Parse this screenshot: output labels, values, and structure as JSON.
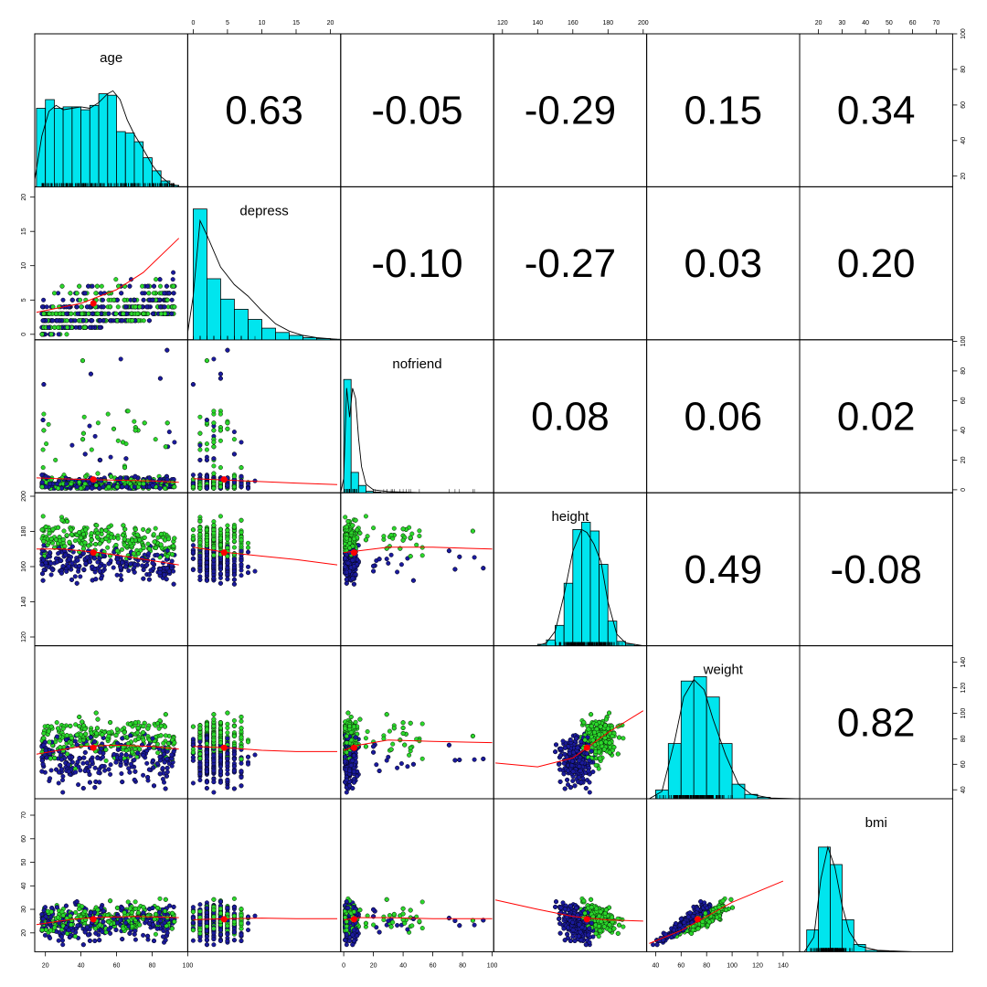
{
  "chart_data": {
    "type": "scatter-matrix",
    "variables": [
      "age",
      "depress",
      "nofriend",
      "height",
      "weight",
      "bmi"
    ],
    "colors": {
      "point_group_a": "#1a1a9c",
      "point_group_b": "#2bd82b",
      "histogram_fill": "#00e5ee",
      "smooth_line": "#ff0000",
      "mean_point": "#ff0000",
      "density_line": "#000000",
      "frame": "#000000"
    },
    "axes": {
      "age": {
        "range": [
          14,
          100
        ],
        "ticks": [
          "20",
          "40",
          "60",
          "80",
          "100"
        ],
        "tick_values": [
          20,
          40,
          60,
          80,
          100
        ]
      },
      "depress": {
        "range": [
          -0.8,
          21.5
        ],
        "ticks": [
          "0",
          "5",
          "10",
          "15",
          "20"
        ],
        "tick_values": [
          0,
          5,
          10,
          15,
          20
        ]
      },
      "nofriend": {
        "range": [
          -2,
          101
        ],
        "ticks": [
          "0",
          "20",
          "40",
          "60",
          "80",
          "100"
        ],
        "tick_values": [
          0,
          20,
          40,
          60,
          80,
          100
        ]
      },
      "height": {
        "range": [
          115,
          202
        ],
        "ticks": [
          "120",
          "140",
          "160",
          "180",
          "200"
        ],
        "tick_values": [
          120,
          140,
          160,
          180,
          200
        ]
      },
      "weight": {
        "range": [
          33,
          153
        ],
        "ticks": [
          "40",
          "60",
          "80",
          "100",
          "120",
          "140"
        ],
        "tick_values": [
          40,
          60,
          80,
          100,
          120,
          140
        ]
      },
      "bmi": {
        "range": [
          12,
          77
        ],
        "ticks": [
          "20",
          "30",
          "40",
          "50",
          "60",
          "70"
        ],
        "tick_values": [
          20,
          30,
          40,
          50,
          60,
          70
        ]
      }
    },
    "axis_label_positions": {
      "top": [
        "depress",
        "height",
        "bmi"
      ],
      "bottom": [
        "age",
        "nofriend",
        "weight"
      ],
      "left": [
        "depress",
        "height",
        "bmi"
      ],
      "right": [
        "age",
        "nofriend",
        "weight"
      ]
    },
    "correlations": [
      {
        "row": "age",
        "col": "depress",
        "label": "0.63"
      },
      {
        "row": "age",
        "col": "nofriend",
        "label": "-0.05"
      },
      {
        "row": "age",
        "col": "height",
        "label": "-0.29"
      },
      {
        "row": "age",
        "col": "weight",
        "label": "0.15"
      },
      {
        "row": "age",
        "col": "bmi",
        "label": "0.34"
      },
      {
        "row": "depress",
        "col": "nofriend",
        "label": "-0.10"
      },
      {
        "row": "depress",
        "col": "height",
        "label": "-0.27"
      },
      {
        "row": "depress",
        "col": "weight",
        "label": "0.03"
      },
      {
        "row": "depress",
        "col": "bmi",
        "label": "0.20"
      },
      {
        "row": "nofriend",
        "col": "height",
        "label": "0.08"
      },
      {
        "row": "nofriend",
        "col": "weight",
        "label": "0.06"
      },
      {
        "row": "nofriend",
        "col": "bmi",
        "label": "0.02"
      },
      {
        "row": "height",
        "col": "weight",
        "label": "0.49"
      },
      {
        "row": "height",
        "col": "bmi",
        "label": "-0.08"
      },
      {
        "row": "weight",
        "col": "bmi",
        "label": "0.82"
      }
    ],
    "histograms": {
      "age": {
        "breaks": [
          15,
          20,
          25,
          30,
          35,
          40,
          45,
          50,
          55,
          60,
          65,
          70,
          75,
          80,
          85,
          90,
          95
        ],
        "counts": [
          0.54,
          0.6,
          0.54,
          0.55,
          0.55,
          0.53,
          0.56,
          0.64,
          0.63,
          0.38,
          0.37,
          0.31,
          0.2,
          0.11,
          0.04,
          0.01
        ]
      },
      "depress": {
        "breaks": [
          0,
          2,
          4,
          6,
          8,
          10,
          12,
          14,
          16,
          18,
          20,
          22
        ],
        "counts": [
          0.9,
          0.42,
          0.28,
          0.21,
          0.14,
          0.08,
          0.05,
          0.03,
          0.015,
          0.008,
          0.004
        ]
      },
      "nofriend": {
        "breaks": [
          0,
          5,
          10,
          15,
          20,
          25
        ],
        "counts": [
          0.78,
          0.14,
          0.05,
          0.01,
          0.005
        ]
      },
      "height": {
        "breaks": [
          140,
          145,
          150,
          155,
          160,
          165,
          170,
          175,
          180,
          185,
          190,
          195
        ],
        "counts": [
          0.01,
          0.04,
          0.14,
          0.43,
          0.8,
          0.85,
          0.79,
          0.56,
          0.17,
          0.03,
          0.01
        ]
      },
      "weight": {
        "breaks": [
          40,
          50,
          60,
          70,
          80,
          90,
          100,
          110,
          120,
          130
        ],
        "counts": [
          0.06,
          0.38,
          0.81,
          0.84,
          0.7,
          0.38,
          0.1,
          0.03,
          0.01
        ]
      },
      "bmi": {
        "breaks": [
          15,
          20,
          25,
          30,
          35,
          40,
          45,
          50
        ],
        "counts": [
          0.15,
          0.72,
          0.6,
          0.22,
          0.05,
          0.01,
          0.005
        ]
      }
    },
    "density_curves": {
      "age": [
        [
          14,
          0.05
        ],
        [
          18,
          0.35
        ],
        [
          22,
          0.52
        ],
        [
          26,
          0.56
        ],
        [
          30,
          0.53
        ],
        [
          35,
          0.54
        ],
        [
          40,
          0.55
        ],
        [
          45,
          0.54
        ],
        [
          50,
          0.58
        ],
        [
          55,
          0.64
        ],
        [
          58,
          0.66
        ],
        [
          62,
          0.6
        ],
        [
          66,
          0.46
        ],
        [
          70,
          0.36
        ],
        [
          75,
          0.26
        ],
        [
          80,
          0.15
        ],
        [
          85,
          0.07
        ],
        [
          90,
          0.02
        ],
        [
          95,
          0.005
        ]
      ],
      "depress": [
        [
          -0.8,
          0.05
        ],
        [
          0,
          0.3
        ],
        [
          1,
          0.82
        ],
        [
          2,
          0.72
        ],
        [
          4,
          0.5
        ],
        [
          6,
          0.38
        ],
        [
          8,
          0.3
        ],
        [
          10,
          0.2
        ],
        [
          12,
          0.11
        ],
        [
          14,
          0.06
        ],
        [
          16,
          0.03
        ],
        [
          18,
          0.015
        ],
        [
          21,
          0.003
        ]
      ],
      "nofriend": [
        [
          -2,
          0.0
        ],
        [
          0,
          0.1
        ],
        [
          2,
          0.72
        ],
        [
          4,
          0.52
        ],
        [
          6,
          0.72
        ],
        [
          8,
          0.65
        ],
        [
          10,
          0.38
        ],
        [
          12,
          0.18
        ],
        [
          15,
          0.06
        ],
        [
          20,
          0.02
        ],
        [
          30,
          0.008
        ],
        [
          50,
          0.002
        ],
        [
          100,
          0.0
        ]
      ],
      "height": [
        [
          140,
          0.0
        ],
        [
          145,
          0.02
        ],
        [
          150,
          0.1
        ],
        [
          155,
          0.35
        ],
        [
          160,
          0.65
        ],
        [
          165,
          0.8
        ],
        [
          168,
          0.78
        ],
        [
          172,
          0.7
        ],
        [
          176,
          0.58
        ],
        [
          180,
          0.3
        ],
        [
          185,
          0.08
        ],
        [
          190,
          0.02
        ],
        [
          200,
          0.0
        ]
      ],
      "weight": [
        [
          35,
          0.0
        ],
        [
          45,
          0.05
        ],
        [
          55,
          0.4
        ],
        [
          62,
          0.7
        ],
        [
          70,
          0.82
        ],
        [
          78,
          0.75
        ],
        [
          85,
          0.55
        ],
        [
          95,
          0.3
        ],
        [
          105,
          0.1
        ],
        [
          115,
          0.03
        ],
        [
          130,
          0.005
        ],
        [
          150,
          0.0
        ]
      ],
      "bmi": [
        [
          14,
          0.0
        ],
        [
          18,
          0.1
        ],
        [
          21,
          0.5
        ],
        [
          24,
          0.72
        ],
        [
          27,
          0.58
        ],
        [
          30,
          0.32
        ],
        [
          33,
          0.14
        ],
        [
          37,
          0.04
        ],
        [
          45,
          0.01
        ],
        [
          60,
          0.0
        ],
        [
          77,
          0.0
        ]
      ]
    },
    "means": {
      "age": 47,
      "depress": 4.5,
      "nofriend": 7,
      "height": 168,
      "weight": 73,
      "bmi": 25.8
    },
    "smooth_lines": {
      "depress|age": [
        [
          15,
          3.2
        ],
        [
          40,
          4.5
        ],
        [
          60,
          6.5
        ],
        [
          75,
          9
        ],
        [
          95,
          14
        ]
      ],
      "nofriend|age": [
        [
          15,
          8
        ],
        [
          40,
          7
        ],
        [
          60,
          6.5
        ],
        [
          80,
          6
        ],
        [
          95,
          5
        ]
      ],
      "height|age": [
        [
          15,
          170
        ],
        [
          30,
          170
        ],
        [
          50,
          168
        ],
        [
          70,
          165
        ],
        [
          95,
          161
        ]
      ],
      "weight|age": [
        [
          15,
          68
        ],
        [
          40,
          74
        ],
        [
          60,
          75
        ],
        [
          80,
          74
        ],
        [
          95,
          72
        ]
      ],
      "bmi|age": [
        [
          15,
          23.5
        ],
        [
          35,
          25.8
        ],
        [
          50,
          26.6
        ],
        [
          70,
          27
        ],
        [
          95,
          26.5
        ]
      ],
      "nofriend|depress": [
        [
          0,
          7.5
        ],
        [
          5,
          6.5
        ],
        [
          10,
          5.5
        ],
        [
          15,
          4.5
        ],
        [
          21,
          3.5
        ]
      ],
      "height|depress": [
        [
          0,
          171
        ],
        [
          5,
          168
        ],
        [
          10,
          166
        ],
        [
          15,
          164
        ],
        [
          21,
          161
        ]
      ],
      "weight|depress": [
        [
          0,
          74
        ],
        [
          5,
          73
        ],
        [
          10,
          71
        ],
        [
          15,
          70
        ],
        [
          21,
          70
        ]
      ],
      "bmi|depress": [
        [
          0,
          25.6
        ],
        [
          5,
          26
        ],
        [
          10,
          26.3
        ],
        [
          15,
          26
        ],
        [
          21,
          26
        ]
      ],
      "height|nofriend": [
        [
          0,
          168
        ],
        [
          10,
          169
        ],
        [
          30,
          171
        ],
        [
          60,
          171
        ],
        [
          100,
          170
        ]
      ],
      "weight|nofriend": [
        [
          0,
          71
        ],
        [
          10,
          75
        ],
        [
          30,
          79
        ],
        [
          60,
          78
        ],
        [
          100,
          77
        ]
      ],
      "bmi|nofriend": [
        [
          0,
          25.5
        ],
        [
          10,
          26.5
        ],
        [
          30,
          26.5
        ],
        [
          60,
          26
        ],
        [
          100,
          26
        ]
      ],
      "weight|height": [
        [
          116,
          61
        ],
        [
          140,
          58
        ],
        [
          160,
          65
        ],
        [
          180,
          85
        ],
        [
          200,
          102
        ]
      ],
      "bmi|height": [
        [
          116,
          34
        ],
        [
          140,
          30
        ],
        [
          160,
          27
        ],
        [
          180,
          25.5
        ],
        [
          200,
          25
        ]
      ],
      "bmi|weight": [
        [
          35,
          15.5
        ],
        [
          60,
          21
        ],
        [
          80,
          27
        ],
        [
          100,
          33
        ],
        [
          140,
          42
        ]
      ]
    }
  }
}
